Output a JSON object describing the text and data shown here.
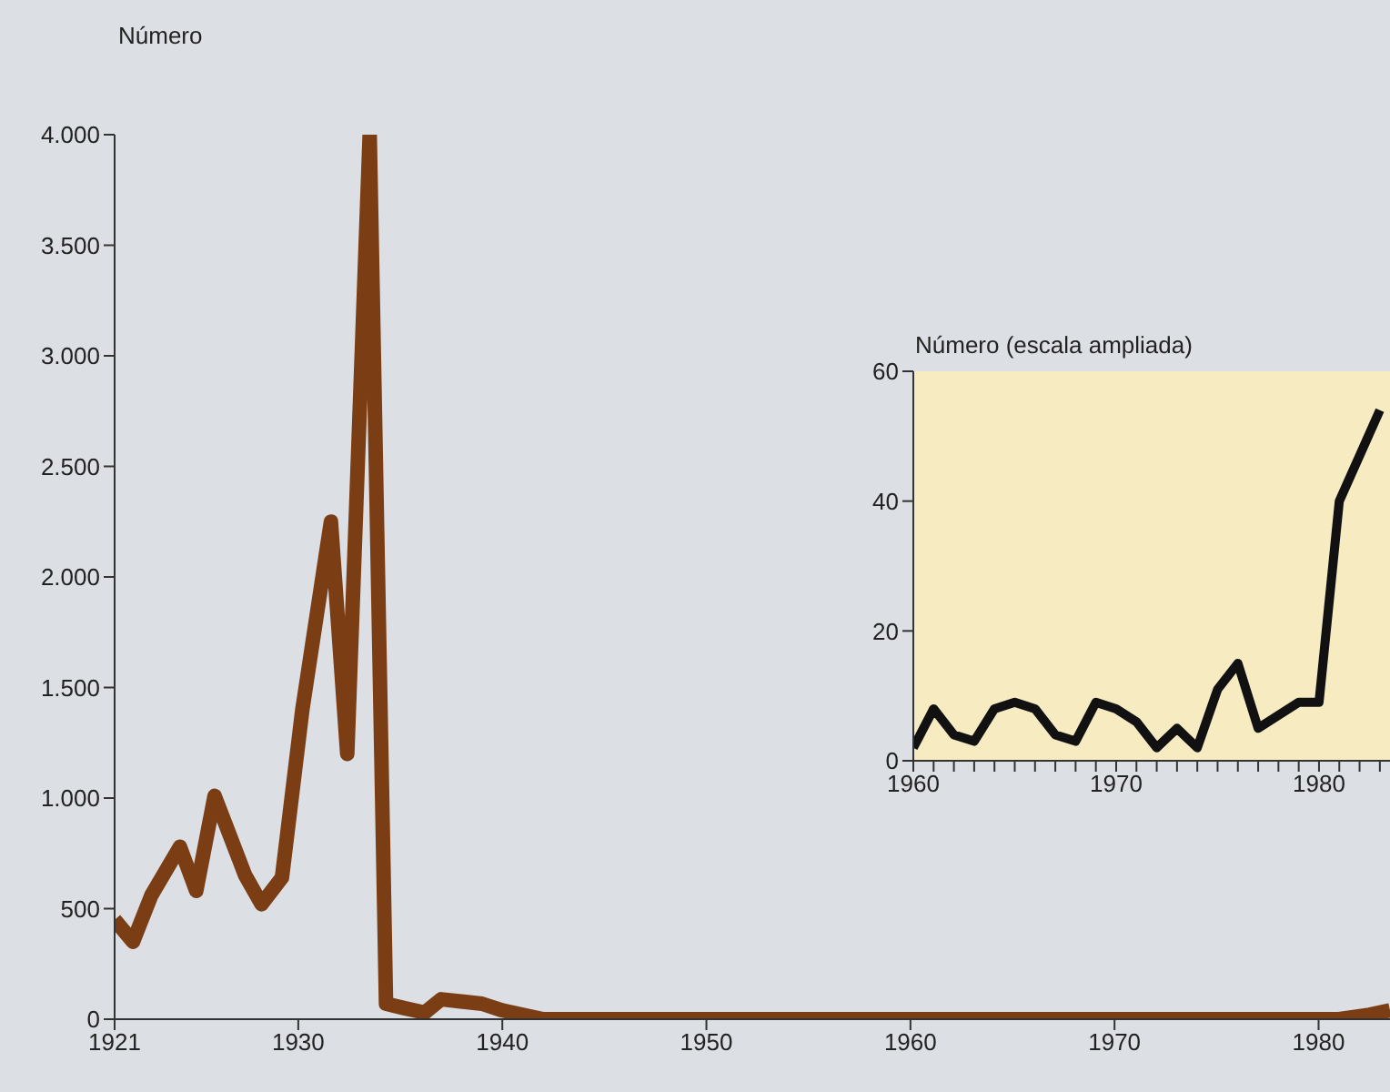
{
  "chart_data": [
    {
      "type": "line",
      "ylabel": "Número",
      "xlim": [
        1921,
        1983.5
      ],
      "ylim": [
        0,
        4000
      ],
      "marker": "none",
      "line_style": "solid",
      "grid": false,
      "xticks": [
        1921,
        1930,
        1940,
        1950,
        1960,
        1970,
        1980
      ],
      "yticks": [
        0,
        500,
        {
          "value": 1000,
          "label": "1.000"
        },
        {
          "value": 1500,
          "label": "1.500"
        },
        {
          "value": 2000,
          "label": "2.000"
        },
        {
          "value": 2500,
          "label": "2.500"
        },
        {
          "value": 3000,
          "label": "3.000"
        },
        {
          "value": 3500,
          "label": "3.500"
        },
        {
          "value": 4000,
          "label": "4.000"
        }
      ],
      "series": [
        {
          "color": "#7a3d14",
          "x": [
            1921,
            1921.9,
            1922.8,
            1924.2,
            1925,
            1925.9,
            1927.4,
            1928.2,
            1929.2,
            1930.2,
            1931.6,
            1932.4,
            1933.5,
            1934.3,
            1935.2,
            1936.2,
            1937,
            1939,
            1940,
            1942,
            1950,
            1960,
            1970,
            1981,
            1982.5,
            1983.5
          ],
          "values": [
            450,
            350,
            560,
            780,
            580,
            1010,
            650,
            520,
            640,
            1400,
            2250,
            1200,
            4000,
            70,
            50,
            30,
            90,
            70,
            40,
            0,
            0,
            0,
            0,
            0,
            20,
            40
          ]
        }
      ]
    },
    {
      "type": "line",
      "ylabel": "Número (escala ampliada)",
      "xlim": [
        1960,
        1983.5
      ],
      "ylim": [
        0,
        60
      ],
      "marker": "none",
      "line_style": "solid",
      "grid": false,
      "xticks": [
        1960,
        {
          "value": 1961,
          "label": null
        },
        {
          "value": 1962,
          "label": null
        },
        {
          "value": 1963,
          "label": null
        },
        {
          "value": 1964,
          "label": null
        },
        {
          "value": 1965,
          "label": null
        },
        {
          "value": 1966,
          "label": null
        },
        {
          "value": 1967,
          "label": null
        },
        {
          "value": 1968,
          "label": null
        },
        {
          "value": 1969,
          "label": null
        },
        1970,
        {
          "value": 1971,
          "label": null
        },
        {
          "value": 1972,
          "label": null
        },
        {
          "value": 1973,
          "label": null
        },
        {
          "value": 1974,
          "label": null
        },
        {
          "value": 1975,
          "label": null
        },
        {
          "value": 1976,
          "label": null
        },
        {
          "value": 1977,
          "label": null
        },
        {
          "value": 1978,
          "label": null
        },
        {
          "value": 1979,
          "label": null
        },
        1980,
        {
          "value": 1981,
          "label": null
        },
        {
          "value": 1982,
          "label": null
        },
        {
          "value": 1983,
          "label": null
        }
      ],
      "yticks": [
        0,
        20,
        40,
        60
      ],
      "series": [
        {
          "color": "#111111",
          "x": [
            1960,
            1961,
            1962,
            1963,
            1964,
            1965,
            1966,
            1967,
            1968,
            1969,
            1970,
            1971,
            1972,
            1973,
            1974,
            1975,
            1976,
            1977,
            1978,
            1979,
            1980,
            1981,
            1982,
            1983
          ],
          "values": [
            2,
            8,
            4,
            3,
            8,
            9,
            8,
            4,
            3,
            9,
            8,
            6,
            2,
            5,
            2,
            11,
            15,
            5,
            7,
            9,
            9,
            40,
            47,
            54
          ]
        }
      ]
    }
  ]
}
